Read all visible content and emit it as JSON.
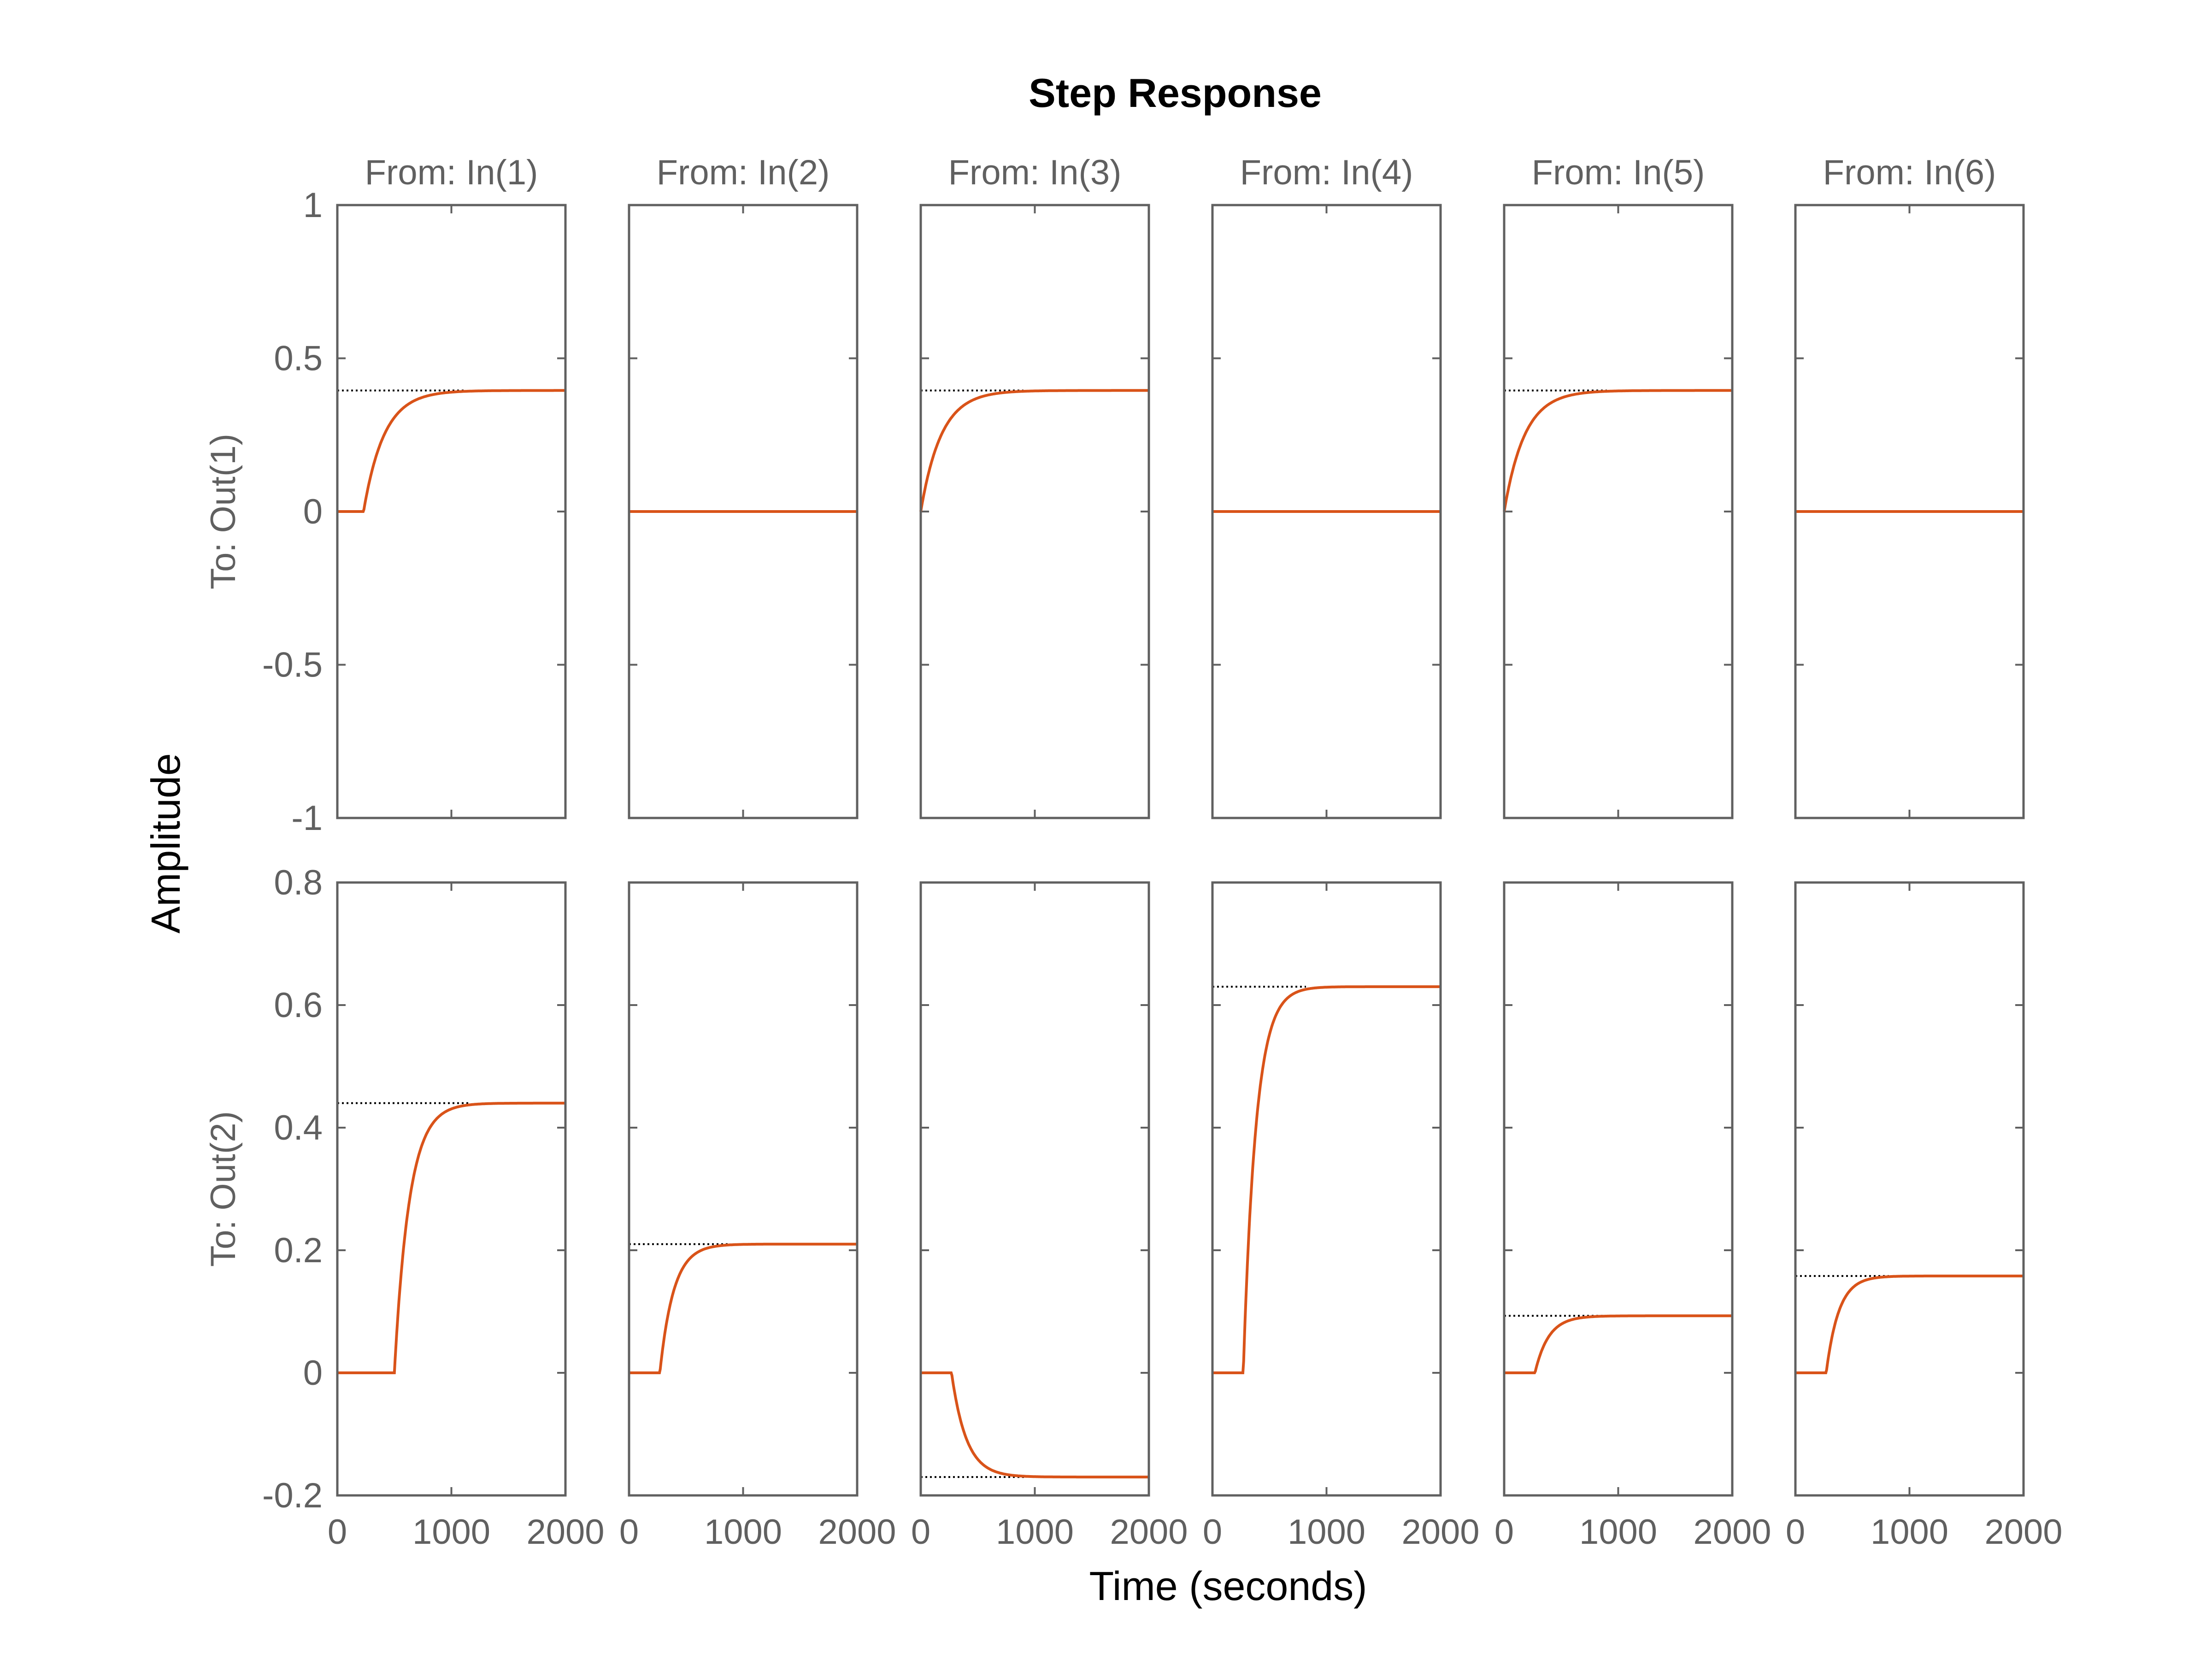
{
  "chart_data": {
    "type": "line",
    "title": "Step Response",
    "xlabel": "Time (seconds)",
    "ylabel": "Amplitude",
    "grid": false,
    "columns": [
      "From: In(1)",
      "From: In(2)",
      "From: In(3)",
      "From: In(4)",
      "From: In(5)",
      "From: In(6)"
    ],
    "rows": [
      {
        "label": "To: Out(1)",
        "ylim": [
          -1,
          1
        ],
        "yticks": [
          -1,
          -0.5,
          0,
          0.5,
          1
        ],
        "ytick_labels": [
          "-1",
          "-0.5",
          "0",
          "0.5",
          "1"
        ],
        "responses": [
          {
            "delay": 230,
            "tau": 180,
            "final": 0.395
          },
          {
            "delay": 0,
            "tau": 0,
            "final": 0
          },
          {
            "delay": 0,
            "tau": 180,
            "final": 0.395
          },
          {
            "delay": 0,
            "tau": 0,
            "final": 0
          },
          {
            "delay": 0,
            "tau": 180,
            "final": 0.395
          },
          {
            "delay": 0,
            "tau": 0,
            "final": 0
          }
        ]
      },
      {
        "label": "To: Out(2)",
        "ylim": [
          -0.2,
          0.8
        ],
        "yticks": [
          -0.2,
          0,
          0.2,
          0.4,
          0.6,
          0.8
        ],
        "ytick_labels": [
          "-0.2",
          "0",
          "0.2",
          "0.4",
          "0.6",
          "0.8"
        ],
        "responses": [
          {
            "delay": 500,
            "tau": 130,
            "final": 0.44
          },
          {
            "delay": 270,
            "tau": 120,
            "final": 0.21
          },
          {
            "delay": 270,
            "tau": 130,
            "final": -0.17
          },
          {
            "delay": 270,
            "tau": 110,
            "final": 0.63
          },
          {
            "delay": 270,
            "tau": 120,
            "final": 0.093
          },
          {
            "delay": 270,
            "tau": 110,
            "final": 0.158
          }
        ]
      }
    ],
    "xlim": [
      0,
      2000
    ],
    "xticks": [
      0,
      1000,
      2000
    ],
    "xtick_labels": [
      "0",
      "1000",
      "2000"
    ],
    "colors": {
      "response": "#D95319",
      "steady_state": "#000000",
      "axes": "#606060"
    }
  }
}
